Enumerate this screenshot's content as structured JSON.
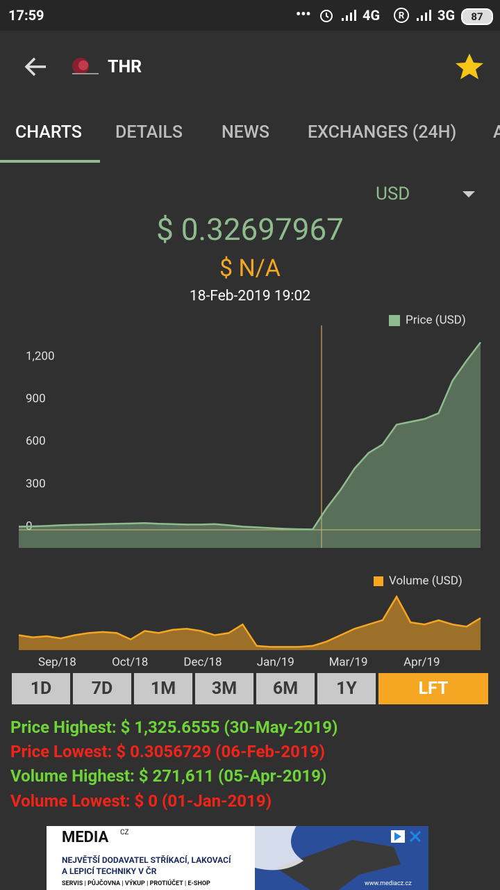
{
  "status_bar": {
    "time": "17:59",
    "network_1": "4G",
    "network_2": "3G",
    "battery": "87"
  },
  "header": {
    "title": "THR"
  },
  "tabs": [
    "CHARTS",
    "DETAILS",
    "NEWS",
    "EXCHANGES (24H)",
    "A"
  ],
  "currency": "USD",
  "price": "$ 0.32697967",
  "change": "$ N/A",
  "timestamp": "18-Feb-2019 19:02",
  "chart_data": [
    {
      "type": "area",
      "x": [
        0,
        2,
        4,
        6,
        8,
        10,
        12,
        14,
        16,
        18,
        20,
        22,
        24,
        26,
        28,
        30,
        32,
        34,
        36,
        38,
        40,
        42,
        44,
        46,
        48,
        50,
        52,
        54,
        56,
        58,
        60,
        62,
        64,
        66
      ],
      "xlim": [
        0,
        66
      ],
      "ylim": [
        -130,
        1430
      ],
      "yticks": [
        0,
        300,
        600,
        900,
        {
          "value": 1200,
          "label": "1,200"
        }
      ],
      "grid": false,
      "series": [
        {
          "name": "Price (USD)",
          "color": "#8fbc8f",
          "values": [
            20,
            22,
            25,
            30,
            33,
            35,
            38,
            40,
            42,
            45,
            40,
            38,
            35,
            35,
            38,
            30,
            20,
            15,
            10,
            5,
            2,
            0.3,
            150,
            280,
            430,
            540,
            600,
            740,
            760,
            780,
            820,
            1050,
            1190,
            1320
          ]
        }
      ]
    },
    {
      "type": "area",
      "x": [
        0,
        2,
        4,
        6,
        8,
        10,
        12,
        14,
        16,
        18,
        20,
        22,
        24,
        26,
        28,
        30,
        32,
        34,
        36,
        38,
        40,
        42,
        44,
        46,
        48,
        50,
        52,
        54,
        56,
        58,
        60,
        62,
        64,
        66
      ],
      "xlim": [
        0,
        66
      ],
      "ylim": [
        0,
        280000
      ],
      "xticks": [
        {
          "value": 5.5,
          "label": "Sep/18"
        },
        {
          "value": 15.9,
          "label": "Oct/18"
        },
        {
          "value": 26.3,
          "label": "Dec/18"
        },
        {
          "value": 36.7,
          "label": "Jan/19"
        },
        {
          "value": 47.1,
          "label": "Mar/19"
        },
        {
          "value": 57.6,
          "label": "Apr/19"
        }
      ],
      "grid": false,
      "series": [
        {
          "name": "Volume (USD)",
          "color": "#f5a623",
          "values": [
            70000,
            60000,
            65000,
            55000,
            70000,
            80000,
            85000,
            80000,
            50000,
            90000,
            80000,
            95000,
            100000,
            90000,
            70000,
            80000,
            120000,
            20000,
            15000,
            15000,
            15000,
            20000,
            40000,
            70000,
            100000,
            120000,
            140000,
            250000,
            130000,
            120000,
            140000,
            120000,
            110000,
            150000
          ]
        }
      ]
    }
  ],
  "ranges": [
    {
      "label": "1D",
      "active": false
    },
    {
      "label": "7D",
      "active": false
    },
    {
      "label": "1M",
      "active": false
    },
    {
      "label": "3M",
      "active": false
    },
    {
      "label": "6M",
      "active": false
    },
    {
      "label": "1Y",
      "active": false
    },
    {
      "label": "LFT",
      "active": true
    }
  ],
  "stats": {
    "price_highest": "Price Highest: $ 1,325.6555 (30-May-2019)",
    "price_lowest": "Price Lowest: $ 0.3056729 (06-Feb-2019)",
    "volume_highest": "Volume Highest: $ 271,611 (05-Apr-2019)",
    "volume_lowest": "Volume Lowest: $ 0 (01-Jan-2019)"
  },
  "ad": {
    "brand": "MEDIA",
    "brand_suffix": "CZ",
    "line_1": "NEJVĚTŠÍ DODAVATEL STŘÍKACÍ, LAKOVACÍ",
    "line_2": "A LEPICÍ TECHNIKY V ČR",
    "services": "SERVIS | PŮJČOVNA | VÝKUP | PROTIÚČET | E-SHOP",
    "url": "www.mediacz.cz"
  }
}
